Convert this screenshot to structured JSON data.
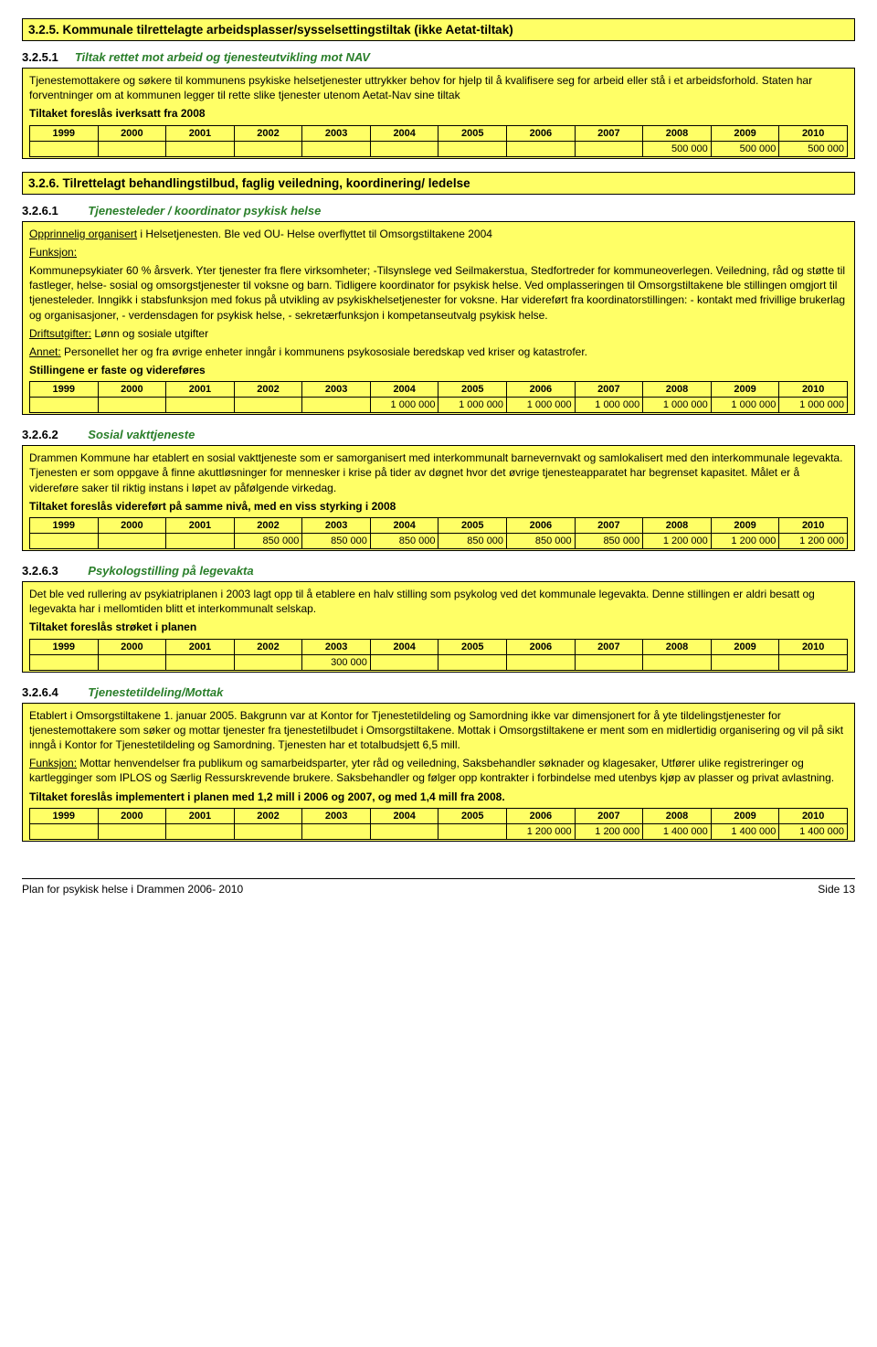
{
  "years": [
    "1999",
    "2000",
    "2001",
    "2002",
    "2003",
    "2004",
    "2005",
    "2006",
    "2007",
    "2008",
    "2009",
    "2010"
  ],
  "s325": {
    "heading": "3.2.5.  Kommunale tilrettelagte arbeidsplasser/sysselsettingstiltak (ikke Aetat-tiltak)",
    "sub_num": "3.2.5.1",
    "sub_title": "Tiltak rettet mot arbeid og tjenesteutvikling mot NAV",
    "p1": "Tjenestemottakere og søkere til kommunens psykiske helsetjenester uttrykker behov for hjelp til å kvalifisere seg for arbeid eller stå i et arbeidsforhold. Staten har forventninger om at kommunen legger til rette slike tjenester utenom Aetat-Nav sine tiltak",
    "action": "Tiltaket foreslås iverksatt fra 2008",
    "row": [
      "",
      "",
      "",
      "",
      "",
      "",
      "",
      "",
      "",
      "500 000",
      "500 000",
      "500 000"
    ]
  },
  "s326": {
    "heading": "3.2.6.  Tilrettelagt behandlingstilbud, faglig veiledning, koordinering/ ledelse",
    "s1": {
      "num": "3.2.6.1",
      "title": "Tjenesteleder / koordinator psykisk helse",
      "lead": "Opprinnelig organisert",
      "lead_rest": " i Helsetjenesten. Ble ved OU- Helse overflyttet til Omsorgstiltakene 2004",
      "f_label": "Funksjon:",
      "f_text": "Kommunepsykiater 60 % årsverk. Yter tjenester fra flere virksomheter; -Tilsynslege ved Seilmakerstua, Stedfortreder for kommuneoverlegen. Veiledning, råd og støtte til fastleger, helse- sosial og omsorgstjenester til voksne og barn. Tidligere koordinator for psykisk helse. Ved omplasseringen til Omsorgstiltakene ble stillingen omgjort til tjenesteleder. Inngikk i stabsfunksjon med fokus på utvikling av psykiskhelsetjenester for voksne. Har videreført fra koordinatorstillingen: - kontakt med frivillige brukerlag og organisasjoner, - verdensdagen for psykisk helse, - sekretærfunksjon i kompetanseutvalg psykisk helse.",
      "d_label": "Driftsutgifter:",
      "d_text": " Lønn og sosiale utgifter",
      "a_label": "Annet:",
      "a_text": " Personellet her og fra øvrige enheter inngår i kommunens psykososiale beredskap ved kriser og katastrofer.",
      "action": "Stillingene er faste og videreføres",
      "row": [
        "",
        "",
        "",
        "",
        "",
        "1 000 000",
        "1 000 000",
        "1 000 000",
        "1 000 000",
        "1 000 000",
        "1 000 000",
        "1 000 000"
      ]
    },
    "s2": {
      "num": "3.2.6.2",
      "title": "Sosial vakttjeneste",
      "p1": "Drammen Kommune har etablert en sosial vakttjeneste som er samorganisert med interkommunalt barnevernvakt og samlokalisert med den interkommunale legevakta. Tjenesten er som oppgave å finne akuttløsninger for mennesker i krise på tider av døgnet hvor det øvrige tjenesteapparatet har begrenset kapasitet. Målet er å videreføre saker til riktig instans i løpet av påfølgende virkedag.",
      "action": "Tiltaket foreslås videreført på samme nivå, med en viss styrking i 2008",
      "row": [
        "",
        "",
        "",
        "850 000",
        "850 000",
        "850 000",
        "850 000",
        "850 000",
        "850 000",
        "1 200 000",
        "1 200 000",
        "1 200 000"
      ]
    },
    "s3": {
      "num": "3.2.6.3",
      "title": "Psykologstilling på legevakta",
      "p1": "Det ble ved rullering av psykiatriplanen i 2003 lagt opp til å etablere en halv stilling som psykolog ved det kommunale legevakta. Denne stillingen er aldri besatt og legevakta har i mellomtiden blitt et interkommunalt selskap.",
      "action": "Tiltaket foreslås strøket i planen",
      "row": [
        "",
        "",
        "",
        "",
        "300 000",
        "",
        "",
        "",
        "",
        "",
        "",
        ""
      ]
    },
    "s4": {
      "num": "3.2.6.4",
      "title": "Tjenestetildeling/Mottak",
      "p1": "Etablert i Omsorgstiltakene 1. januar 2005. Bakgrunn var at Kontor for Tjenestetildeling og Samordning ikke var dimensjonert for å yte tildelingstjenester for tjenestemottakere som søker og mottar tjenester fra tjenestetilbudet i Omsorgstiltakene. Mottak i Omsorgstiltakene er ment som en midlertidig organisering og vil på sikt inngå i Kontor for Tjenestetildeling og Samordning. Tjenesten har et totalbudsjett 6,5 mill.",
      "f_label": "Funksjon:",
      "f_text": " Mottar henvendelser fra publikum og samarbeidsparter, yter råd og veiledning, Saksbehandler søknader og klagesaker, Utfører ulike registreringer og kartlegginger som IPLOS og Særlig Ressurskrevende brukere. Saksbehandler og følger opp kontrakter i forbindelse med utenbys kjøp av plasser og privat avlastning.",
      "action": "Tiltaket foreslås implementert i planen med 1,2 mill i 2006 og 2007, og med 1,4 mill fra 2008.",
      "row": [
        "",
        "",
        "",
        "",
        "",
        "",
        "",
        "1 200 000",
        "1 200 000",
        "1 400 000",
        "1 400 000",
        "1 400 000"
      ]
    }
  },
  "footer": {
    "left": "Plan for psykisk helse i Drammen 2006- 2010",
    "right": "Side 13"
  }
}
